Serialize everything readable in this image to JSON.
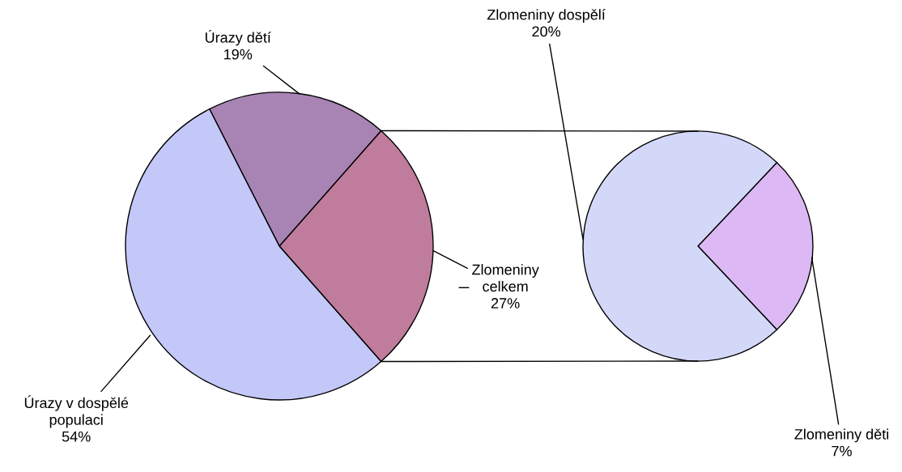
{
  "chart_data": [
    {
      "type": "pie",
      "categories": [
        "Zlomeniny celkem",
        "Úrazy dětí",
        "Úrazy v dospělé populaci"
      ],
      "values": [
        27,
        19,
        54
      ],
      "colors": [
        "#c07c9c",
        "#a884b4",
        "#c4c8f8"
      ],
      "value_labels": [
        "27%",
        "19%",
        "54%"
      ]
    },
    {
      "type": "pie",
      "categories": [
        "Zlomeniny děti",
        "Zlomeniny dospělí"
      ],
      "values": [
        7,
        20
      ],
      "colors": [
        "#dcb8f4",
        "#d4d8f8"
      ],
      "value_labels": [
        "7%",
        "20%"
      ]
    }
  ]
}
